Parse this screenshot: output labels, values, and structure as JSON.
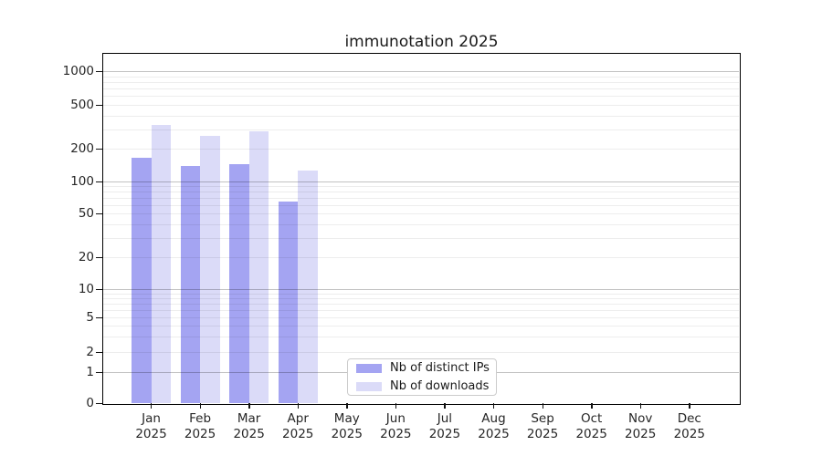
{
  "figure": {
    "title": "immunotation 2025"
  },
  "chart_data": {
    "type": "bar",
    "title": "immunotation 2025",
    "categories": [
      "Jan",
      "Feb",
      "Mar",
      "Apr",
      "May",
      "Jun",
      "Jul",
      "Aug",
      "Sep",
      "Oct",
      "Nov",
      "Dec"
    ],
    "year": "2025",
    "series": [
      {
        "name": "Nb of distinct IPs",
        "color": "#a4a4f2",
        "values": [
          165,
          140,
          145,
          65,
          0,
          0,
          0,
          0,
          0,
          0,
          0,
          0
        ]
      },
      {
        "name": "Nb of downloads",
        "color": "#dbdbf8",
        "values": [
          330,
          260,
          290,
          125,
          0,
          0,
          0,
          0,
          0,
          0,
          0,
          0
        ]
      }
    ],
    "xlabel": "",
    "ylabel": "",
    "yscale": "symlog",
    "yticks": [
      0,
      1,
      2,
      5,
      10,
      20,
      50,
      100,
      200,
      500,
      1000
    ],
    "ylim": [
      0,
      1400
    ],
    "grid": true,
    "grid_over_bars": true,
    "legend_position": "lower center"
  }
}
